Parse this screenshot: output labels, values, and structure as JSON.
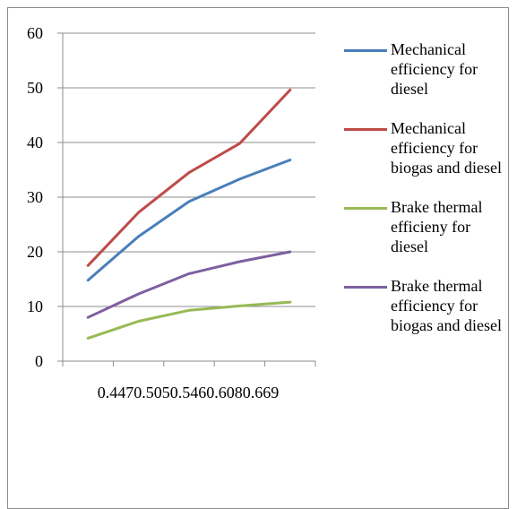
{
  "chart_data": {
    "type": "line",
    "categories": [
      "0.447",
      "0.505",
      "0.546",
      "0.608",
      "0.669"
    ],
    "x_axis_label_text": "0.4470.5050.5460.6080.669",
    "ylim": [
      0,
      60
    ],
    "yticks": [
      "0",
      "10",
      "20",
      "30",
      "40",
      "50",
      "60"
    ],
    "grid": "horizontal",
    "legend_position": "right",
    "series": [
      {
        "name": "Mechanical efficiency for diesel",
        "color": "#4a7ebb",
        "values": [
          14.8,
          22.8,
          29.2,
          33.3,
          36.8
        ]
      },
      {
        "name": "Mechanical efficiency for biogas and diesel",
        "color": "#be4b48",
        "values": [
          17.5,
          27.2,
          34.5,
          39.8,
          49.6
        ]
      },
      {
        "name": "Brake thermal efficieny for diesel",
        "color": "#98b954",
        "values": [
          4.2,
          7.3,
          9.3,
          10.1,
          10.8
        ]
      },
      {
        "name": "Brake thermal efficiency for biogas and diesel",
        "color": "#7d60a0",
        "values": [
          8.0,
          12.3,
          16.0,
          18.2,
          20.0
        ]
      }
    ]
  }
}
